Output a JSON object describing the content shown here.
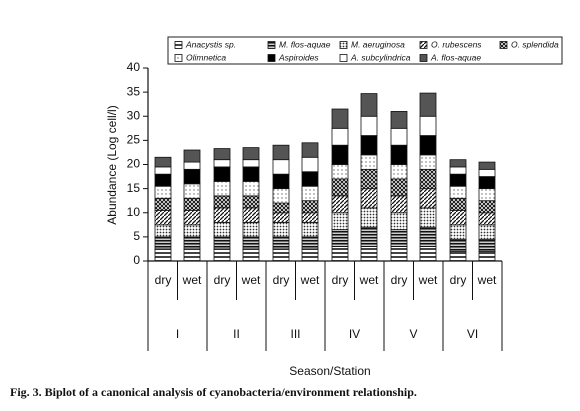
{
  "chart_data": {
    "type": "stacked_bar",
    "y_label": "Abundance (Log cell/l)",
    "x_label": "Season/Station",
    "caption": "Fig. 3. Biplot of a canonical analysis of cyanobacteria/environment relationship.",
    "categories": [
      "dry",
      "wet",
      "dry",
      "wet",
      "dry",
      "wet",
      "dry",
      "wet",
      "dry",
      "wet",
      "dry",
      "wet"
    ],
    "groups": [
      "I",
      "II",
      "III",
      "IV",
      "V",
      "VI"
    ],
    "ylim": [
      0,
      40
    ],
    "yticks": [
      0,
      5,
      10,
      15,
      20,
      25,
      30,
      35,
      40
    ],
    "series": [
      {
        "name": "Anacystis sp.",
        "color": "#777777",
        "pattern": "hlines",
        "values": [
          2.5,
          2.5,
          2.5,
          2.5,
          2.5,
          2.5,
          3,
          3,
          3,
          3,
          2,
          2
        ]
      },
      {
        "name": "M. flos-aquae",
        "color": "#222222",
        "pattern": "hdense",
        "values": [
          2.5,
          2.5,
          2.5,
          2.5,
          2.5,
          2.5,
          3.5,
          4,
          3.5,
          4,
          2.5,
          2.5
        ]
      },
      {
        "name": "M. aeruginosa",
        "color": "#999999",
        "pattern": "dots",
        "values": [
          2.5,
          2.5,
          3,
          3,
          3,
          3,
          3.5,
          4,
          3.5,
          4,
          3,
          3
        ]
      },
      {
        "name": "O. rubescens",
        "color": "#444444",
        "pattern": "diag",
        "values": [
          3,
          3,
          3,
          3,
          2,
          2,
          3.5,
          4,
          3.5,
          4,
          3,
          2.5
        ]
      },
      {
        "name": "O. splendida",
        "color": "#555555",
        "pattern": "cross",
        "values": [
          2.5,
          2.5,
          2.5,
          2.5,
          2,
          2.5,
          3.5,
          4,
          3.5,
          4,
          2.5,
          2.5
        ]
      },
      {
        "name": "Olimnetica",
        "color": "#bbbbbb",
        "pattern": "light",
        "values": [
          2.5,
          3,
          3,
          3,
          3,
          3,
          3,
          3,
          3,
          3,
          2.5,
          2.5
        ]
      },
      {
        "name": "Aspiroides",
        "color": "#000000",
        "values": [
          2.5,
          3,
          3,
          3,
          3,
          3,
          4,
          4,
          4,
          4,
          2.5,
          2.5
        ]
      },
      {
        "name": "A. subcylindrica",
        "color": "#ffffff",
        "values": [
          1.5,
          1.5,
          1.5,
          1.5,
          3,
          3,
          3.5,
          4,
          3.5,
          4,
          1.5,
          1.5
        ]
      },
      {
        "name": "A. flos-aquae",
        "color": "#555555",
        "values": [
          2,
          2.5,
          2.3,
          2.5,
          3,
          3,
          4,
          4.7,
          3.5,
          4.8,
          1.5,
          1.5
        ]
      }
    ]
  }
}
